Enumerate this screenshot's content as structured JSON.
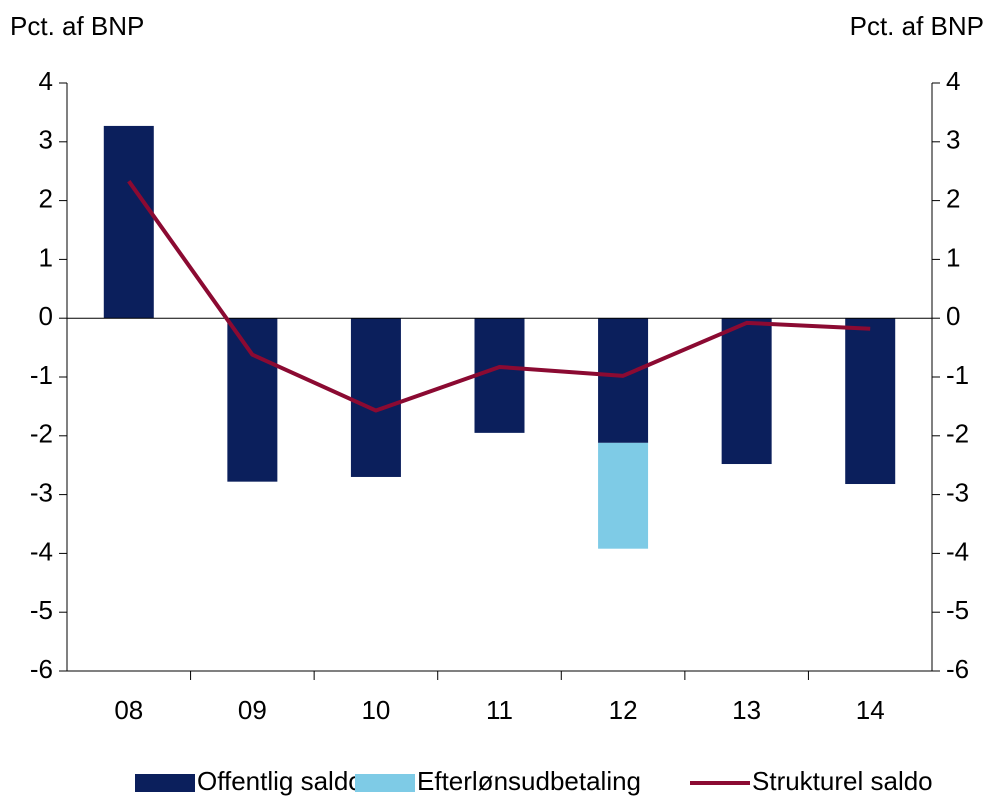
{
  "chart_data": {
    "type": "bar",
    "y_label": "Pct. af BNP",
    "y2_label": "Pct. af BNP",
    "categories": [
      "08",
      "09",
      "10",
      "11",
      "12",
      "13",
      "14"
    ],
    "series": [
      {
        "name": "Offentlig saldo",
        "type": "bar",
        "color": "#0b1f5c",
        "values": [
          3.27,
          -2.78,
          -2.7,
          -1.95,
          -2.12,
          -2.48,
          -2.82
        ]
      },
      {
        "name": "Efterlønsudbetaling",
        "type": "bar",
        "stacked": true,
        "color": "#7ecbe6",
        "values": [
          null,
          null,
          null,
          null,
          -1.8,
          null,
          null
        ]
      },
      {
        "name": "Strukturel saldo",
        "type": "line",
        "color": "#8b0a32",
        "axis": "y2",
        "values": [
          2.33,
          -0.62,
          -1.57,
          -0.83,
          -0.98,
          -0.08,
          -0.18
        ]
      }
    ],
    "ylim": [
      -6,
      4
    ],
    "yticks": [
      4,
      3,
      2,
      1,
      0,
      -1,
      -2,
      -3,
      -4,
      -5,
      -6
    ],
    "y2lim": [
      -6,
      4
    ],
    "y2ticks": [
      4,
      3,
      2,
      1,
      0,
      -1,
      -2,
      -3,
      -4,
      -5,
      -6
    ],
    "legend": "bottom"
  }
}
